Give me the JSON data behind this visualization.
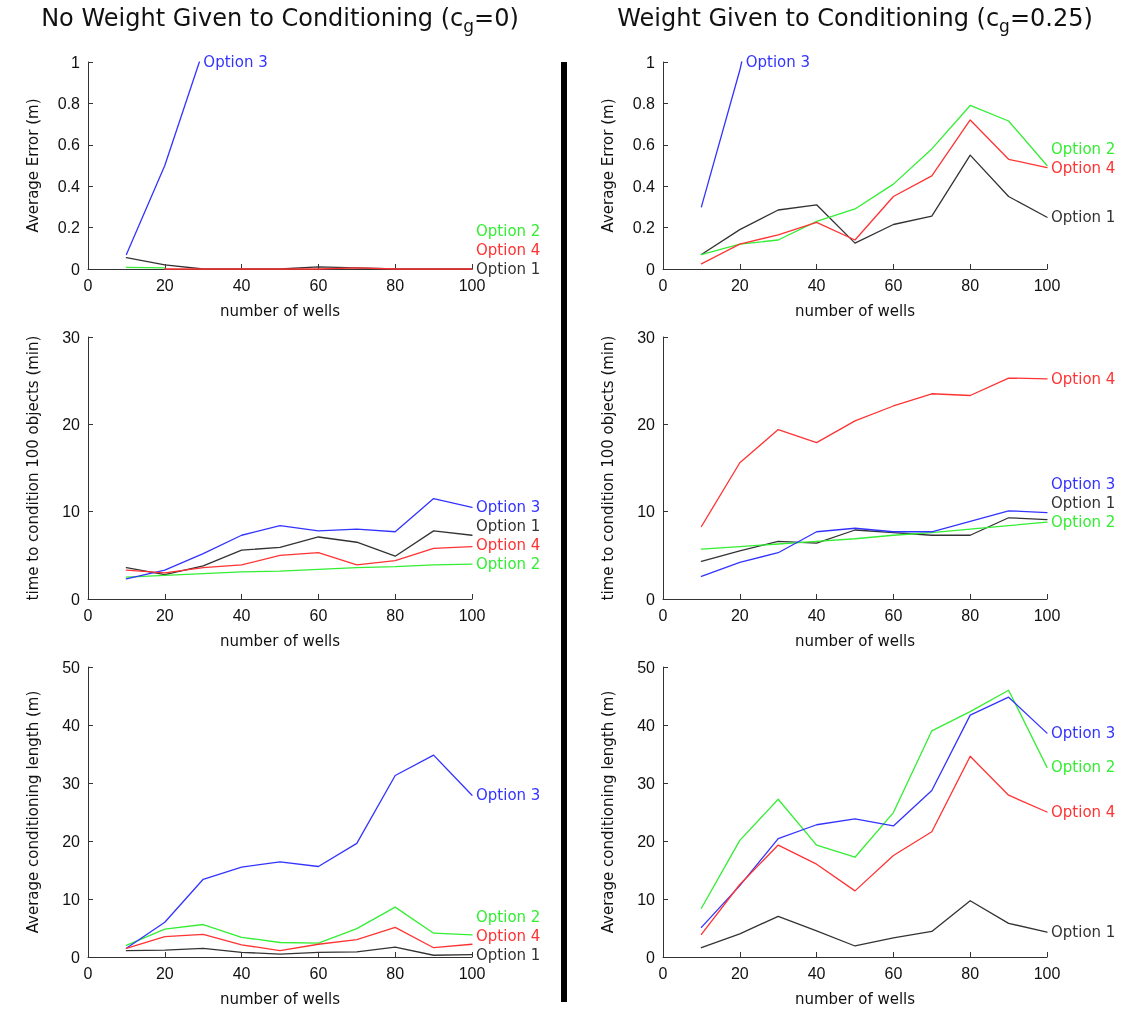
{
  "chart_data": [
    {
      "type": "line",
      "title": "No Weight Given to Conditioning (c$_{g}$=0)",
      "xlabel": "number of wells",
      "ylabel": "Average Error (m)",
      "x": [
        10,
        20,
        30,
        40,
        50,
        60,
        70,
        80,
        90,
        100
      ],
      "xlim": [
        0,
        100
      ],
      "xticks": [
        0,
        20,
        40,
        60,
        80,
        100
      ],
      "ylim": [
        0,
        1
      ],
      "yticks": [
        0,
        0.2,
        0.4,
        0.6,
        0.8,
        1
      ],
      "grid": false,
      "legend": false,
      "marker": "none",
      "line_style": "solid",
      "series": [
        {
          "name": "Option 1",
          "color": "#333333",
          "values": [
            0.055,
            0.02,
            0,
            0,
            0,
            0.01,
            0.005,
            0,
            0,
            0
          ]
        },
        {
          "name": "Option 2",
          "color": "#33ee33",
          "values": [
            0.008,
            0.005,
            null,
            null,
            null,
            null,
            null,
            null,
            null,
            null
          ]
        },
        {
          "name": "Option 3",
          "color": "#3333ff",
          "x": [
            10,
            20,
            29
          ],
          "values": [
            0.07,
            0.5,
            1
          ]
        },
        {
          "name": "Option 4",
          "color": "#ff3333",
          "values": [
            null,
            0,
            0,
            0,
            0,
            0,
            0.005,
            0,
            0,
            0
          ]
        }
      ]
    },
    {
      "type": "line",
      "title": "Weight Given to Conditioning (c$_{g}$=0.25)",
      "xlabel": "number of wells",
      "ylabel": "Average Error (m)",
      "x": [
        10,
        20,
        30,
        40,
        50,
        60,
        70,
        80,
        90,
        100
      ],
      "xlim": [
        0,
        100
      ],
      "xticks": [
        0,
        20,
        40,
        60,
        80,
        100
      ],
      "ylim": [
        0,
        1
      ],
      "yticks": [
        0,
        0.2,
        0.4,
        0.6,
        0.8,
        1
      ],
      "grid": false,
      "legend": false,
      "marker": "none",
      "line_style": "solid",
      "series": [
        {
          "name": "Option 1",
          "color": "#333333",
          "values": [
            0.07,
            0.19,
            0.285,
            0.31,
            0.125,
            0.215,
            0.255,
            0.55,
            0.35,
            0.25
          ]
        },
        {
          "name": "Option 2",
          "color": "#33ee33",
          "values": [
            0.07,
            0.12,
            0.14,
            0.23,
            0.29,
            0.41,
            0.58,
            0.79,
            0.715,
            0.5
          ]
        },
        {
          "name": "Option 3",
          "color": "#3333ff",
          "x": [
            10,
            20,
            20.5
          ],
          "values": [
            0.3,
            0.96,
            1
          ]
        },
        {
          "name": "Option 4",
          "color": "#ff3333",
          "values": [
            0.025,
            0.12,
            0.165,
            0.225,
            0.14,
            0.35,
            0.45,
            0.72,
            0.53,
            0.49
          ]
        }
      ]
    },
    {
      "type": "line",
      "xlabel": "number of wells",
      "ylabel": "time to condition 100 objects (min)",
      "x": [
        10,
        20,
        30,
        40,
        50,
        60,
        70,
        80,
        90,
        100
      ],
      "xlim": [
        0,
        100
      ],
      "xticks": [
        0,
        20,
        40,
        60,
        80,
        100
      ],
      "ylim": [
        0,
        30
      ],
      "yticks": [
        0,
        10,
        20,
        30
      ],
      "grid": false,
      "legend": false,
      "marker": "none",
      "line_style": "solid",
      "series": [
        {
          "name": "Option 1",
          "color": "#333333",
          "values": [
            3.6,
            2.8,
            3.8,
            5.6,
            5.9,
            7.1,
            6.5,
            4.9,
            7.8,
            7.3
          ]
        },
        {
          "name": "Option 2",
          "color": "#33ee33",
          "values": [
            2.5,
            2.7,
            2.9,
            3.1,
            3.2,
            3.4,
            3.6,
            3.7,
            3.9,
            4.0
          ]
        },
        {
          "name": "Option 3",
          "color": "#3333ff",
          "values": [
            2.3,
            3.3,
            5.2,
            7.3,
            8.4,
            7.8,
            8.0,
            7.7,
            11.5,
            10.5
          ]
        },
        {
          "name": "Option 4",
          "color": "#ff3333",
          "values": [
            3.3,
            3.0,
            3.6,
            3.9,
            5.0,
            5.3,
            3.9,
            4.4,
            5.8,
            6.0
          ]
        }
      ]
    },
    {
      "type": "line",
      "xlabel": "number of wells",
      "ylabel": "time to condition 100 objects (min)",
      "x": [
        10,
        20,
        30,
        40,
        50,
        60,
        70,
        80,
        90,
        100
      ],
      "xlim": [
        0,
        100
      ],
      "xticks": [
        0,
        20,
        40,
        60,
        80,
        100
      ],
      "ylim": [
        0,
        30
      ],
      "yticks": [
        0,
        10,
        20,
        30
      ],
      "grid": false,
      "legend": false,
      "marker": "none",
      "line_style": "solid",
      "series": [
        {
          "name": "Option 1",
          "color": "#333333",
          "values": [
            4.3,
            5.5,
            6.6,
            6.4,
            7.9,
            7.6,
            7.3,
            7.3,
            9.3,
            9.1
          ]
        },
        {
          "name": "Option 2",
          "color": "#33ee33",
          "values": [
            5.7,
            6.0,
            6.3,
            6.6,
            6.9,
            7.3,
            7.6,
            8.0,
            8.4,
            8.8
          ]
        },
        {
          "name": "Option 3",
          "color": "#3333ff",
          "values": [
            2.6,
            4.2,
            5.3,
            7.7,
            8.1,
            7.7,
            7.7,
            8.9,
            10.1,
            9.9
          ]
        },
        {
          "name": "Option 4",
          "color": "#ff3333",
          "values": [
            8.3,
            15.6,
            19.4,
            17.9,
            20.4,
            22.1,
            23.5,
            23.3,
            25.3,
            25.2
          ]
        }
      ]
    },
    {
      "type": "line",
      "xlabel": "number of wells",
      "ylabel": "Average conditioning length (m)",
      "x": [
        10,
        20,
        30,
        40,
        50,
        60,
        70,
        80,
        90,
        100
      ],
      "xlim": [
        0,
        100
      ],
      "xticks": [
        0,
        20,
        40,
        60,
        80,
        100
      ],
      "ylim": [
        0,
        50
      ],
      "yticks": [
        0,
        10,
        20,
        30,
        40,
        50
      ],
      "grid": false,
      "legend": false,
      "marker": "none",
      "line_style": "solid",
      "series": [
        {
          "name": "Option 1",
          "color": "#333333",
          "values": [
            1.1,
            1.2,
            1.5,
            0.8,
            0.5,
            0.8,
            0.9,
            1.7,
            0.3,
            0.4
          ]
        },
        {
          "name": "Option 2",
          "color": "#33ee33",
          "values": [
            2.0,
            4.8,
            5.6,
            3.4,
            2.5,
            2.4,
            4.9,
            8.6,
            4.1,
            3.8
          ]
        },
        {
          "name": "Option 3",
          "color": "#3333ff",
          "values": [
            1.5,
            6.0,
            13.4,
            15.5,
            16.4,
            15.6,
            19.6,
            31.3,
            34.8,
            27.9
          ]
        },
        {
          "name": "Option 4",
          "color": "#ff3333",
          "values": [
            1.5,
            3.5,
            3.9,
            2.1,
            1.1,
            2.2,
            3.0,
            5.1,
            1.6,
            2.2
          ]
        }
      ]
    },
    {
      "type": "line",
      "xlabel": "number of wells",
      "ylabel": "Average conditioning length (m)",
      "x": [
        10,
        20,
        30,
        40,
        50,
        60,
        70,
        80,
        90,
        100
      ],
      "xlim": [
        0,
        100
      ],
      "xticks": [
        0,
        20,
        40,
        60,
        80,
        100
      ],
      "ylim": [
        0,
        50
      ],
      "yticks": [
        0,
        10,
        20,
        30,
        40,
        50
      ],
      "grid": false,
      "legend": false,
      "marker": "none",
      "line_style": "solid",
      "series": [
        {
          "name": "Option 1",
          "color": "#333333",
          "values": [
            1.6,
            4.0,
            7.0,
            4.5,
            1.9,
            3.3,
            4.4,
            9.7,
            5.8,
            4.3
          ]
        },
        {
          "name": "Option 2",
          "color": "#33ee33",
          "values": [
            8.4,
            20.1,
            27.2,
            19.3,
            17.2,
            24.9,
            39.0,
            42.3,
            46.0,
            32.7
          ]
        },
        {
          "name": "Option 3",
          "color": "#3333ff",
          "values": [
            5.1,
            12.3,
            20.4,
            22.8,
            23.8,
            22.6,
            28.7,
            41.7,
            44.8,
            38.6
          ]
        },
        {
          "name": "Option 4",
          "color": "#ff3333",
          "values": [
            3.9,
            12.5,
            19.3,
            16.0,
            11.4,
            17.5,
            21.6,
            34.6,
            27.9,
            25.0
          ]
        }
      ]
    }
  ]
}
